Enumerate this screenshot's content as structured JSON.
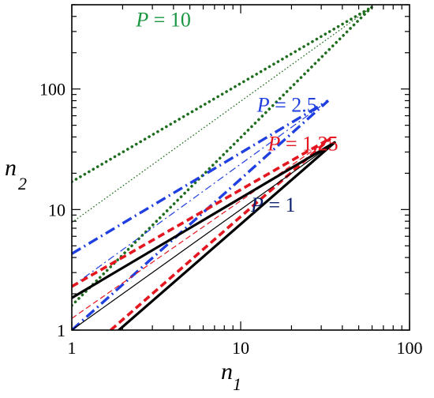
{
  "chart_data": {
    "type": "line",
    "title": "",
    "xlabel": "n",
    "xlabel_sub": "1",
    "ylabel": "n",
    "ylabel_sub": "2",
    "xscale": "log",
    "yscale": "log",
    "xlim": [
      1,
      100
    ],
    "ylim": [
      1,
      500
    ],
    "x_ticks": [
      {
        "value": 1,
        "label": "1"
      },
      {
        "value": 10,
        "label": "10"
      },
      {
        "value": 100,
        "label": "100"
      }
    ],
    "y_ticks": [
      {
        "value": 1,
        "label": "1"
      },
      {
        "value": 10,
        "label": "10"
      },
      {
        "value": 100,
        "label": "100"
      }
    ],
    "grid": false,
    "annotations": [
      {
        "id": "p10",
        "var": "P",
        "text": " = 10",
        "color": "#1a9641",
        "x": 2.4,
        "y": 330
      },
      {
        "id": "p25",
        "var": "P",
        "text": " = 2.5",
        "color": "#1f3fe0",
        "x": 12.5,
        "y": 65
      },
      {
        "id": "p125",
        "var": "P",
        "text": " = 1.25",
        "color": "#e4161f",
        "x": 14.5,
        "y": 31
      },
      {
        "id": "p1",
        "var": "P",
        "text": " = 1",
        "color": "#0a1f6e",
        "x": 11.5,
        "y": 9.6
      }
    ],
    "series": [
      {
        "group": "P=10",
        "role": "upper",
        "color": "#1f6e1f",
        "style": "dotted-thick",
        "x": [
          1,
          60
        ],
        "y": [
          17,
          480
        ]
      },
      {
        "group": "P=10",
        "role": "lower",
        "color": "#1f6e1f",
        "style": "dotted-thick",
        "x": [
          1,
          60
        ],
        "y": [
          1.6,
          480
        ]
      },
      {
        "group": "P=10",
        "role": "middle",
        "color": "#1f6e1f",
        "style": "dotted-thin",
        "x": [
          1,
          60
        ],
        "y": [
          7.8,
          480
        ]
      },
      {
        "group": "P=2.5",
        "role": "upper",
        "color": "#1f3fe0",
        "style": "dashdot-thick",
        "x": [
          1,
          33
        ],
        "y": [
          4.3,
          80
        ]
      },
      {
        "group": "P=2.5",
        "role": "lower",
        "color": "#1f3fe0",
        "style": "dashdot-thick",
        "x": [
          1,
          33
        ],
        "y": [
          1,
          80
        ]
      },
      {
        "group": "P=2.5",
        "role": "middle",
        "color": "#1f3fe0",
        "style": "dashdot-thin",
        "x": [
          1,
          33
        ],
        "y": [
          2.3,
          80
        ]
      },
      {
        "group": "P=1.25",
        "role": "upper",
        "color": "#e4161f",
        "style": "dashed-thick",
        "x": [
          1,
          34
        ],
        "y": [
          2.3,
          39
        ]
      },
      {
        "group": "P=1.25",
        "role": "lower",
        "color": "#e4161f",
        "style": "dashed-thick",
        "x": [
          1.7,
          34
        ],
        "y": [
          1,
          39
        ]
      },
      {
        "group": "P=1.25",
        "role": "middle",
        "color": "#e4161f",
        "style": "dashed-thin",
        "x": [
          1,
          34
        ],
        "y": [
          1.25,
          39
        ]
      },
      {
        "group": "P=1",
        "role": "upper",
        "color": "#000000",
        "style": "solid-thick",
        "x": [
          1,
          36
        ],
        "y": [
          1.85,
          36
        ]
      },
      {
        "group": "P=1",
        "role": "lower",
        "color": "#000000",
        "style": "solid-thick",
        "x": [
          1.9,
          36
        ],
        "y": [
          1,
          36
        ]
      },
      {
        "group": "P=1",
        "role": "middle",
        "color": "#000000",
        "style": "solid-thin",
        "x": [
          1,
          36
        ],
        "y": [
          1,
          36
        ]
      }
    ]
  }
}
